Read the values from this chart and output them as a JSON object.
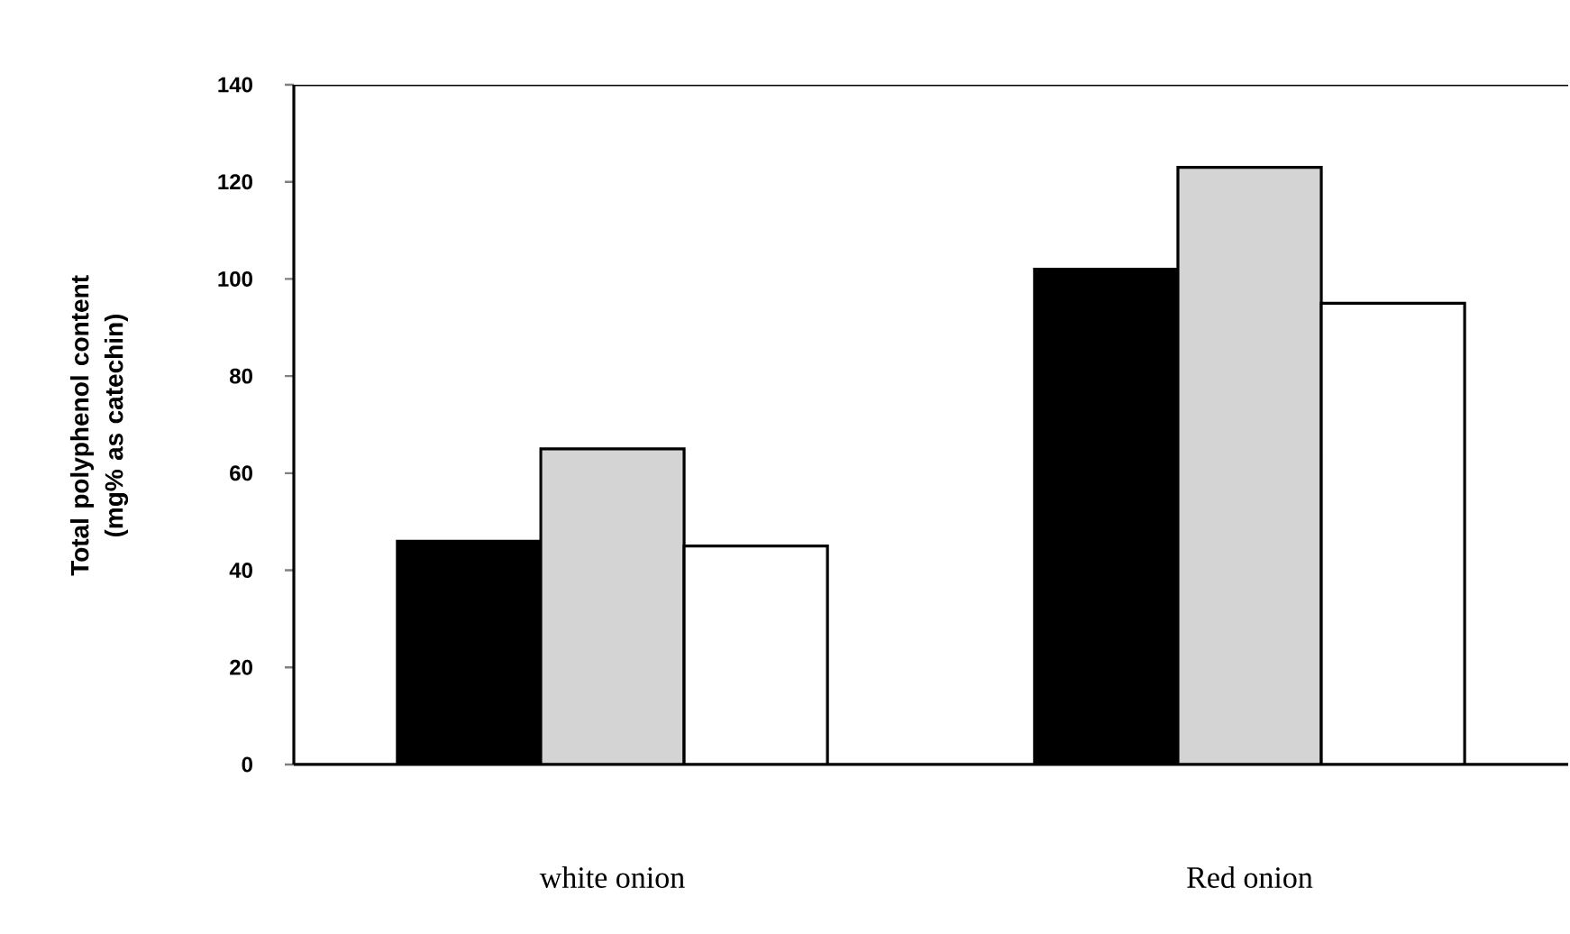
{
  "chart_data": {
    "type": "bar",
    "ylabel": "Total polyphenol content\n(mg% as catechin)",
    "categories": [
      "white onion",
      "Red onion"
    ],
    "series": [
      {
        "color": "#000000",
        "values": [
          46,
          102
        ]
      },
      {
        "color": "#d4d4d4",
        "values": [
          65,
          123
        ]
      },
      {
        "color": "#ffffff",
        "values": [
          45,
          95
        ]
      }
    ],
    "ylim": [
      0,
      140
    ],
    "yticks": [
      0,
      20,
      40,
      60,
      80,
      100,
      120,
      140
    ],
    "grid": false
  }
}
